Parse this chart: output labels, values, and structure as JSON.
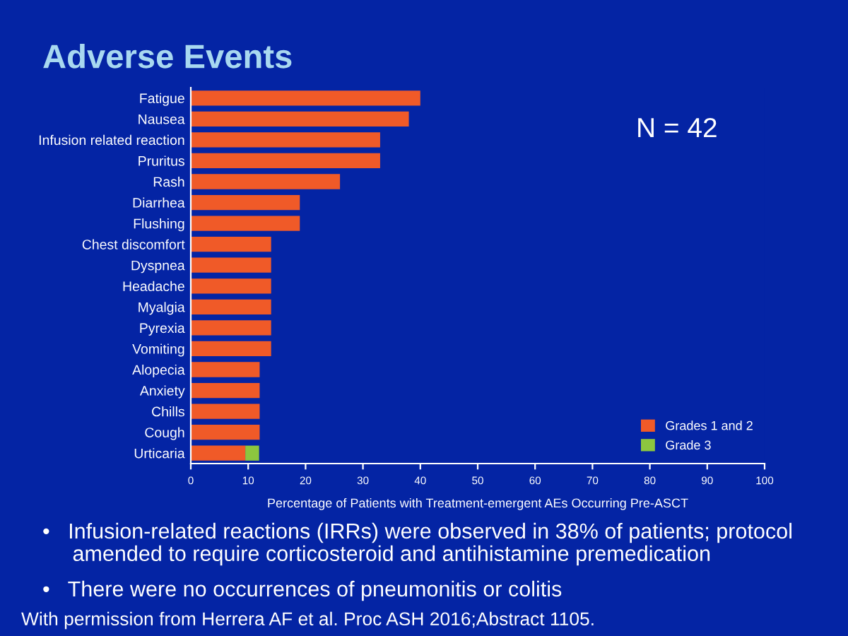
{
  "chart_data": {
    "type": "bar",
    "orientation": "horizontal",
    "stacked": true,
    "title": "Adverse Events",
    "categories": [
      "Fatigue",
      "Nausea",
      "Infusion related reaction",
      "Pruritus",
      "Rash",
      "Diarrhea",
      "Flushing",
      "Chest discomfort",
      "Dyspnea",
      "Headache",
      "Myalgia",
      "Pyrexia",
      "Vomiting",
      "Alopecia",
      "Anxiety",
      "Chills",
      "Cough",
      "Urticaria"
    ],
    "series": [
      {
        "name": "Grades 1 and 2",
        "color": "#f05a28",
        "values": [
          40,
          38,
          33,
          33,
          26,
          19,
          19,
          14,
          14,
          14,
          14,
          14,
          14,
          12,
          12,
          12,
          12,
          9.5
        ]
      },
      {
        "name": "Grade 3",
        "color": "#8cc63f",
        "values": [
          null,
          null,
          null,
          null,
          null,
          null,
          null,
          null,
          null,
          null,
          null,
          null,
          null,
          null,
          null,
          null,
          null,
          2.4
        ]
      }
    ],
    "xlim": [
      0,
      100
    ],
    "xticks": [
      0,
      10,
      20,
      30,
      40,
      50,
      60,
      70,
      80,
      90,
      100
    ],
    "xlabel": "Percentage of Patients with Treatment-emergent AEs Occurring Pre-ASCT",
    "grid": false,
    "legend": "bottom right",
    "annotations": [
      "N = 42",
      "•   Infusion-related reactions (IRRs) were observed in 38% of patients; protocol\n     amended to require corticosteroid and antihistamine premedication",
      "•   There were no occurrences of pneumonitis or colitis",
      "With permission from Herrera AF et al. Proc ASH 2016;Abstract 1105."
    ]
  }
}
